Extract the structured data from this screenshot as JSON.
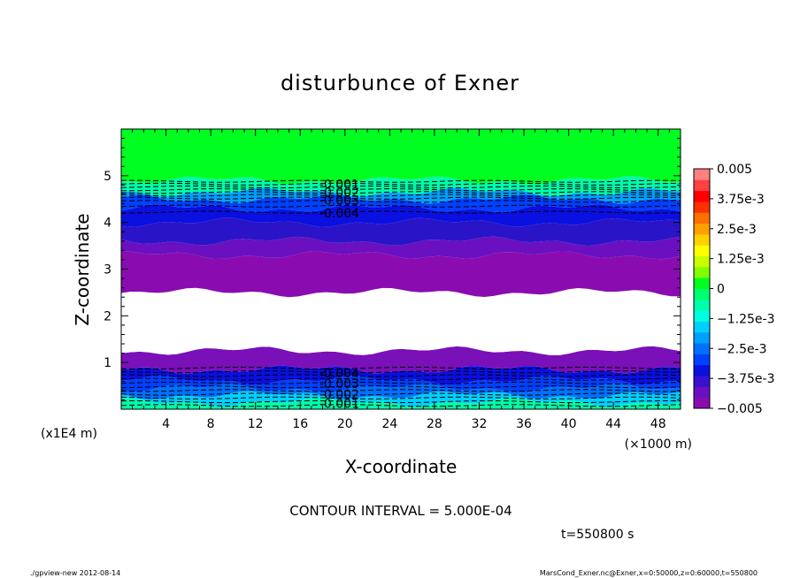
{
  "chart_data": {
    "type": "heatmap",
    "title": "disturbunce of Exner",
    "xlabel": "X-coordinate",
    "ylabel": "Z-coordinate",
    "x_unit_label": "(×1000 m)",
    "y_unit_label": "(x1E4 m)",
    "xlim": [
      0,
      50
    ],
    "ylim": [
      0,
      6
    ],
    "x_ticks": [
      4,
      8,
      12,
      16,
      20,
      24,
      28,
      32,
      36,
      40,
      44,
      48
    ],
    "y_ticks": [
      1,
      2,
      3,
      4,
      5
    ],
    "contour_interval_text": "CONTOUR INTERVAL = 5.000E-04",
    "time_text": "t=550800 s",
    "colorbar": {
      "min": -0.005,
      "max": 0.005,
      "labels": [
        "0.005",
        "3.75e-3",
        "2.5e-3",
        "1.25e-3",
        "0",
        "−1.25e-3",
        "−2.5e-3",
        "−3.75e-3",
        "−0.005"
      ],
      "colors": [
        "#8a0cb0",
        "#6a10c0",
        "#3a10d0",
        "#0a10e0",
        "#0040ff",
        "#0070ff",
        "#00a0ff",
        "#00d0ff",
        "#00ffe0",
        "#00ffaa",
        "#00ff70",
        "#00ff20",
        "#80ff00",
        "#c8ff00",
        "#ffff00",
        "#ffd000",
        "#ffa000",
        "#ff7000",
        "#ff3000",
        "#ff0000",
        "#ff4040",
        "#ff8080"
      ]
    },
    "bands": [
      {
        "z_bottom": 0.0,
        "z_top": 0.15,
        "value": -0.0012,
        "color": "#00ffaa"
      },
      {
        "z_bottom": 0.15,
        "z_top": 0.3,
        "value": -0.0022,
        "color": "#00d0ff"
      },
      {
        "z_bottom": 0.3,
        "z_top": 0.45,
        "value": -0.0032,
        "color": "#0070ff"
      },
      {
        "z_bottom": 0.45,
        "z_top": 0.62,
        "value": -0.0038,
        "color": "#0040ff"
      },
      {
        "z_bottom": 0.62,
        "z_top": 0.85,
        "value": -0.0042,
        "color": "#0a10e0"
      },
      {
        "z_bottom": 0.85,
        "z_top": 1.25,
        "value": -0.0048,
        "color": "#7a10b8"
      },
      {
        "z_bottom": 1.25,
        "z_top": 2.5,
        "value": -0.0055,
        "color": "#ffffff"
      },
      {
        "z_bottom": 2.5,
        "z_top": 3.3,
        "value": -0.0049,
        "color": "#8a0cb0"
      },
      {
        "z_bottom": 3.3,
        "z_top": 3.6,
        "value": -0.0046,
        "color": "#6a10c0"
      },
      {
        "z_bottom": 3.6,
        "z_top": 4.0,
        "value": -0.0043,
        "color": "#2a14c8"
      },
      {
        "z_bottom": 4.0,
        "z_top": 4.3,
        "value": -0.004,
        "color": "#0a10e0"
      },
      {
        "z_bottom": 4.3,
        "z_top": 4.5,
        "value": -0.0035,
        "color": "#0040ff"
      },
      {
        "z_bottom": 4.5,
        "z_top": 4.65,
        "value": -0.0027,
        "color": "#00a0ff"
      },
      {
        "z_bottom": 4.65,
        "z_top": 4.9,
        "value": -0.0012,
        "color": "#00ffaa"
      },
      {
        "z_bottom": 4.9,
        "z_top": 6.0,
        "value": 0.0,
        "color": "#00ff20"
      }
    ],
    "contour_lines_z": [
      0.08,
      0.16,
      0.24,
      0.32,
      0.4,
      0.48,
      0.56,
      0.64,
      0.72,
      0.8,
      0.88,
      4.22,
      4.35,
      4.45,
      4.52,
      4.58,
      4.64,
      4.7,
      4.76,
      4.82,
      4.88
    ],
    "contour_labels": [
      {
        "text": "-0.001",
        "x": 19.5,
        "z": 0.12
      },
      {
        "text": "-0.002",
        "x": 19.5,
        "z": 0.32
      },
      {
        "text": "-0.003",
        "x": 19.5,
        "z": 0.55
      },
      {
        "text": "-0.004",
        "x": 19.5,
        "z": 0.78
      },
      {
        "text": "-0.004",
        "x": 19.5,
        "z": 4.2
      },
      {
        "text": "-0.003",
        "x": 19.5,
        "z": 4.48
      },
      {
        "text": "-0.002",
        "x": 19.5,
        "z": 4.65
      },
      {
        "text": "-0.001",
        "x": 19.5,
        "z": 4.82
      }
    ]
  },
  "footer": {
    "left": "./gpview-new   2012-08-14",
    "right": "MarsCond_Exner.nc@Exner,x=0:50000,z=0:60000,t=550800"
  }
}
